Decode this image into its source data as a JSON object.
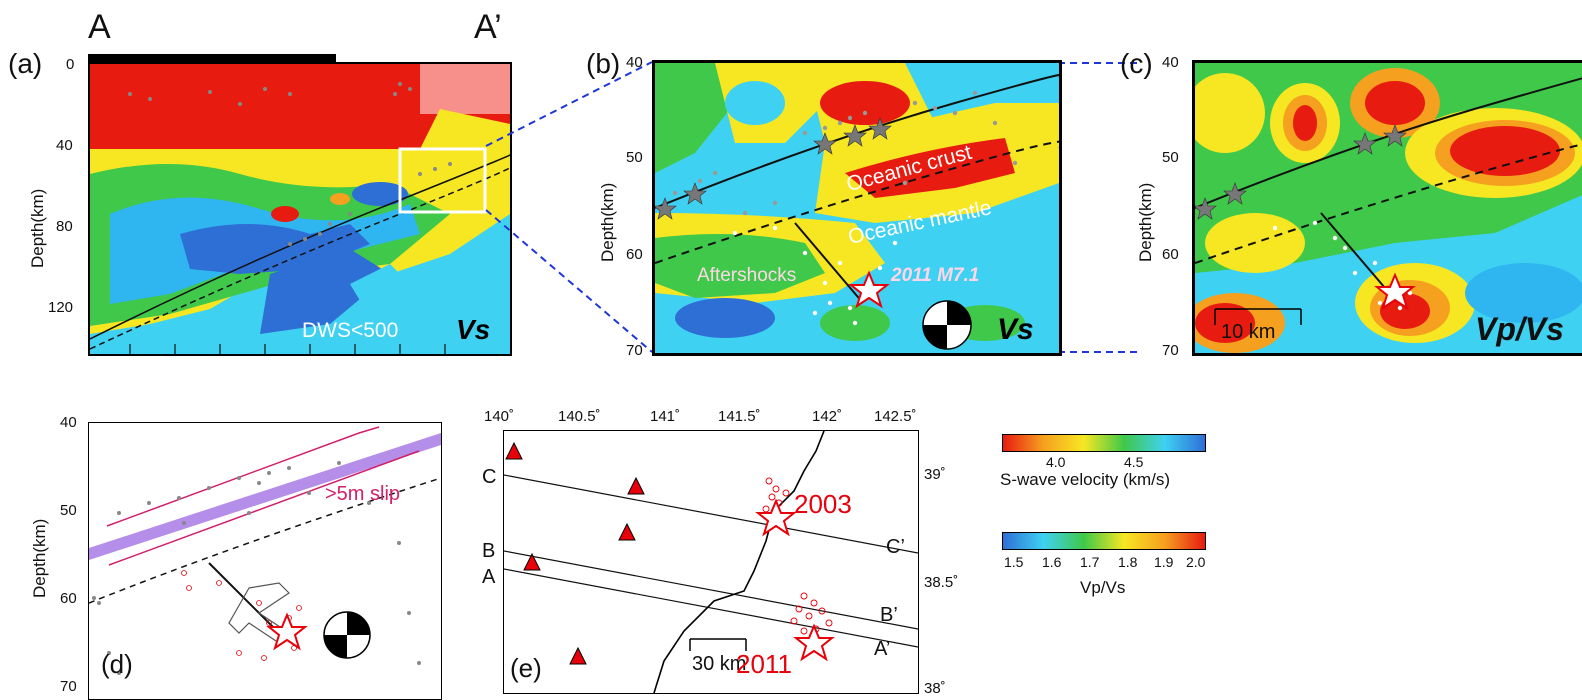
{
  "section_labels": {
    "a": "A",
    "a_prime": "A’"
  },
  "panel_a": {
    "label": "(a)",
    "ylabel": "Depth(km)",
    "yticks": [
      "0",
      "40",
      "80",
      "120"
    ],
    "note": "DWS<500",
    "tag": "Vs"
  },
  "panel_b": {
    "label": "(b)",
    "ylabel": "Depth(km)",
    "yticks": [
      "40",
      "50",
      "60",
      "70"
    ],
    "annotations": {
      "crust": "Oceanic crust",
      "mantle": "Oceanic mantle",
      "aftershocks": "Aftershocks",
      "event": "2011 M7.1"
    },
    "tag": "Vs"
  },
  "panel_c": {
    "label": "(c)",
    "ylabel": "Depth(km)",
    "yticks": [
      "40",
      "50",
      "60",
      "70"
    ],
    "scale": "10 km",
    "tag": "Vp/Vs"
  },
  "panel_d": {
    "label": "(d)",
    "ylabel": "Depth(km)",
    "yticks": [
      "40",
      "50",
      "60",
      "70"
    ],
    "slip": ">5m slip"
  },
  "panel_e": {
    "label": "(e)",
    "xticks": [
      "140˚",
      "140.5˚",
      "141˚",
      "141.5˚",
      "142˚",
      "142.5˚"
    ],
    "yticks": [
      "39˚",
      "38.5˚",
      "38˚"
    ],
    "profiles": [
      {
        "start": "C",
        "end": "C’"
      },
      {
        "start": "B",
        "end": "B’"
      },
      {
        "start": "A",
        "end": "A’"
      }
    ],
    "scale": "30 km",
    "events": [
      "2003",
      "2011"
    ]
  },
  "colorbars": {
    "vs": {
      "ticks": [
        "4.0",
        "4.5"
      ],
      "label": "S-wave velocity (km/s)"
    },
    "vpvs": {
      "ticks": [
        "1.5",
        "1.6",
        "1.7",
        "1.8",
        "1.9",
        "2.0"
      ],
      "label": "Vp/Vs"
    }
  },
  "colors": {
    "red": "#e8000b",
    "accent": "#d21f6a",
    "slip": "#b48ee8"
  }
}
